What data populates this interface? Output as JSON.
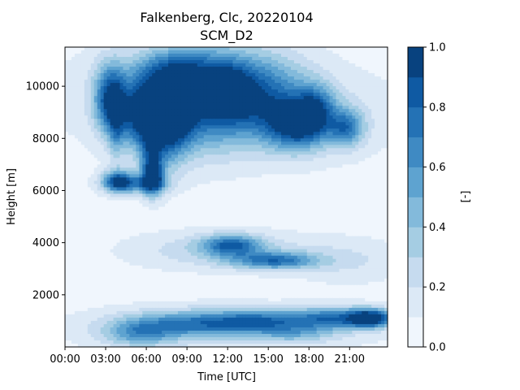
{
  "chart_data": {
    "type": "heatmap",
    "subtype": "filled-contour",
    "title": "Falkenberg, Clc, 20220104",
    "subtitle": "SCM_D2",
    "xlabel": "Time [UTC]",
    "ylabel": "Height [m]",
    "x_unit": "hours UTC",
    "xlim": [
      0,
      23.8
    ],
    "ylim": [
      0,
      11500
    ],
    "x_ticks": [
      {
        "value": 0,
        "label": "00:00"
      },
      {
        "value": 3,
        "label": "03:00"
      },
      {
        "value": 6,
        "label": "06:00"
      },
      {
        "value": 9,
        "label": "09:00"
      },
      {
        "value": 12,
        "label": "12:00"
      },
      {
        "value": 15,
        "label": "15:00"
      },
      {
        "value": 18,
        "label": "18:00"
      },
      {
        "value": 21,
        "label": "21:00"
      }
    ],
    "y_ticks": [
      {
        "value": 2000,
        "label": "2000"
      },
      {
        "value": 4000,
        "label": "4000"
      },
      {
        "value": 6000,
        "label": "6000"
      },
      {
        "value": 8000,
        "label": "8000"
      },
      {
        "value": 10000,
        "label": "10000"
      }
    ],
    "colorbar": {
      "label": "[-]",
      "min": 0.0,
      "max": 1.0,
      "levels": [
        0.0,
        0.1,
        0.2,
        0.3,
        0.4,
        0.5,
        0.6,
        0.7,
        0.8,
        0.9,
        1.0
      ],
      "colors": [
        "#f0f6fd",
        "#dce9f6",
        "#c6dbef",
        "#a5cde3",
        "#83badb",
        "#5ea3d0",
        "#3f8ac3",
        "#2472b5",
        "#0f5aa3",
        "#08427f"
      ],
      "tick_labels": [
        {
          "value": 0.0,
          "label": "0.0"
        },
        {
          "value": 0.2,
          "label": "0.2"
        },
        {
          "value": 0.4,
          "label": "0.4"
        },
        {
          "value": 0.6,
          "label": "0.6"
        },
        {
          "value": 0.8,
          "label": "0.8"
        },
        {
          "value": 1.0,
          "label": "1.0"
        }
      ]
    },
    "background_level": 0.05,
    "features": [
      {
        "t": 3.3,
        "z": 9500,
        "st": 0.8,
        "sz": 900,
        "v": 0.75
      },
      {
        "t": 3.8,
        "z": 8500,
        "st": 0.4,
        "sz": 1000,
        "v": 0.3
      },
      {
        "t": 5.2,
        "z": 9000,
        "st": 1.0,
        "sz": 900,
        "v": 0.5
      },
      {
        "t": 7.3,
        "z": 8800,
        "st": 1.3,
        "sz": 1100,
        "v": 1.0
      },
      {
        "t": 10.2,
        "z": 9500,
        "st": 2.5,
        "sz": 1300,
        "v": 0.55
      },
      {
        "t": 12.3,
        "z": 9800,
        "st": 1.0,
        "sz": 600,
        "v": 0.35
      },
      {
        "t": 14.5,
        "z": 9700,
        "st": 2.5,
        "sz": 1100,
        "v": 0.5
      },
      {
        "t": 17.2,
        "z": 8500,
        "st": 1.6,
        "sz": 650,
        "v": 0.75
      },
      {
        "t": 18.5,
        "z": 9200,
        "st": 1.0,
        "sz": 600,
        "v": 0.45
      },
      {
        "t": 20.8,
        "z": 8400,
        "st": 0.9,
        "sz": 500,
        "v": 0.55
      },
      {
        "t": 8.5,
        "z": 10700,
        "st": 2.5,
        "sz": 500,
        "v": 0.35
      },
      {
        "t": 8.0,
        "z": 9600,
        "st": 6.0,
        "sz": 1400,
        "v": 0.18
      },
      {
        "t": 17.0,
        "z": 8900,
        "st": 6.0,
        "sz": 1200,
        "v": 0.15
      },
      {
        "t": 3.9,
        "z": 6350,
        "st": 0.8,
        "sz": 300,
        "v": 0.7
      },
      {
        "t": 6.5,
        "z": 6500,
        "st": 0.6,
        "sz": 500,
        "v": 0.75
      },
      {
        "t": 5.3,
        "z": 6250,
        "st": 1.5,
        "sz": 250,
        "v": 0.45
      },
      {
        "t": 6.3,
        "z": 7400,
        "st": 0.5,
        "sz": 700,
        "v": 0.3
      },
      {
        "t": 12.3,
        "z": 3900,
        "st": 1.5,
        "sz": 280,
        "v": 0.6
      },
      {
        "t": 15.5,
        "z": 3300,
        "st": 2.2,
        "sz": 230,
        "v": 0.6
      },
      {
        "t": 11.5,
        "z": 3700,
        "st": 4.5,
        "sz": 500,
        "v": 0.25
      },
      {
        "t": 21.0,
        "z": 3300,
        "st": 3.0,
        "sz": 600,
        "v": 0.15
      },
      {
        "t": 9.5,
        "z": 900,
        "st": 3.5,
        "sz": 350,
        "v": 0.5
      },
      {
        "t": 14.5,
        "z": 1000,
        "st": 2.5,
        "sz": 300,
        "v": 0.45
      },
      {
        "t": 5.5,
        "z": 500,
        "st": 1.8,
        "sz": 350,
        "v": 0.4
      },
      {
        "t": 19.5,
        "z": 1100,
        "st": 2.0,
        "sz": 300,
        "v": 0.55
      },
      {
        "t": 22.5,
        "z": 1100,
        "st": 1.2,
        "sz": 250,
        "v": 0.95
      },
      {
        "t": 12.0,
        "z": 700,
        "st": 8.0,
        "sz": 600,
        "v": 0.18
      },
      {
        "t": 17.0,
        "z": 500,
        "st": 2.0,
        "sz": 250,
        "v": 0.25
      }
    ]
  }
}
